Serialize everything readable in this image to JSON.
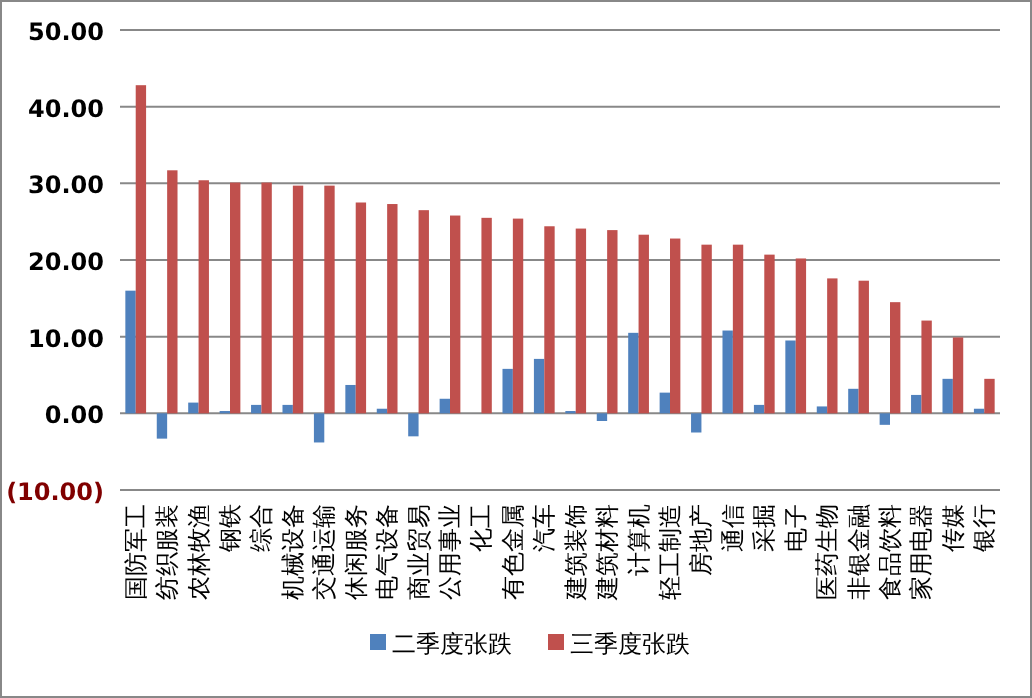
{
  "chart_data": {
    "type": "bar",
    "categories": [
      "国防军工",
      "纺织服装",
      "农林牧渔",
      "钢铁",
      "综合",
      "机械设备",
      "交通运输",
      "休闲服务",
      "电气设备",
      "商业贸易",
      "公用事业",
      "化工",
      "有色金属",
      "汽车",
      "建筑装饰",
      "建筑材料",
      "计算机",
      "轻工制造",
      "房地产",
      "通信",
      "采掘",
      "电子",
      "医药生物",
      "非银金融",
      "食品饮料",
      "家用电器",
      "传媒",
      "银行"
    ],
    "series": [
      {
        "name": "二季度张跌",
        "color": "#4f81bd",
        "values": [
          16.0,
          -3.3,
          1.4,
          0.3,
          1.1,
          1.1,
          -3.8,
          3.7,
          0.6,
          -3.0,
          1.9,
          0,
          5.8,
          7.1,
          0.3,
          -1.0,
          10.5,
          2.7,
          -2.5,
          10.8,
          1.1,
          9.5,
          0.9,
          3.2,
          -1.5,
          2.4,
          4.5,
          0.6
        ]
      },
      {
        "name": "三季度张跌",
        "color": "#c0504d",
        "values": [
          42.8,
          31.7,
          30.4,
          30.1,
          30.1,
          29.7,
          29.7,
          27.5,
          27.3,
          26.5,
          25.8,
          25.5,
          25.4,
          24.4,
          24.1,
          23.9,
          23.3,
          22.8,
          22.0,
          22.0,
          20.7,
          20.2,
          17.6,
          17.3,
          14.5,
          12.1,
          9.9,
          4.5
        ]
      }
    ],
    "ylim": [
      -10,
      50
    ],
    "yticks": [
      {
        "value": -10,
        "label": "(10.00)"
      },
      {
        "value": 0,
        "label": "0.00"
      },
      {
        "value": 10,
        "label": "10.00"
      },
      {
        "value": 20,
        "label": "20.00"
      },
      {
        "value": 30,
        "label": "30.00"
      },
      {
        "value": 40,
        "label": "40.00"
      },
      {
        "value": 50,
        "label": "50.00"
      }
    ],
    "grid": "y",
    "legend": "bottom"
  }
}
